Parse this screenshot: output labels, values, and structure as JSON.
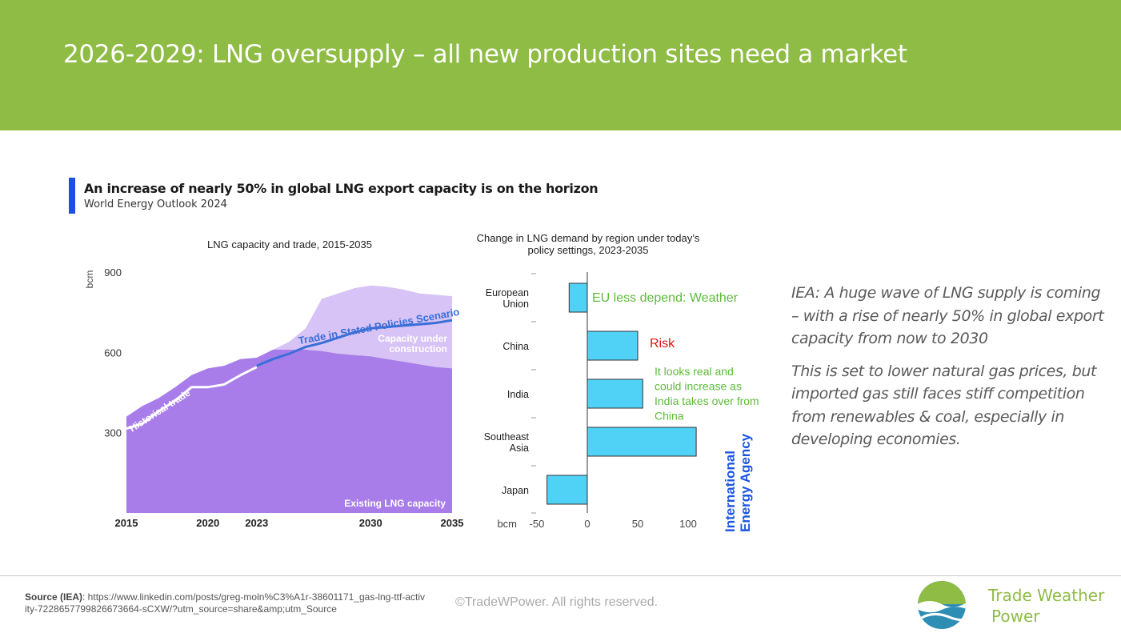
{
  "page": {
    "title": "2026-2029: LNG oversupply – all new production sites need a market"
  },
  "figure": {
    "title": "An increase of nearly 50% in global LNG export capacity is on the horizon",
    "subtitle": "World Energy Outlook 2024",
    "agency_label": [
      "International",
      "Energy Agency"
    ]
  },
  "chart_data": [
    {
      "type": "area",
      "title": "LNG capacity and trade, 2015-2035",
      "ylabel": "bcm",
      "ylim": [
        0,
        900
      ],
      "yticks": [
        300,
        600,
        900
      ],
      "xticks": [
        2015,
        2020,
        2023,
        2030,
        2035
      ],
      "xlim": [
        2015,
        2035
      ],
      "series": [
        {
          "name": "Existing LNG capacity",
          "color": "#a87de9",
          "x": [
            2015,
            2016,
            2017,
            2018,
            2019,
            2020,
            2021,
            2022,
            2023,
            2024,
            2025,
            2026,
            2027,
            2028,
            2029,
            2030,
            2031,
            2032,
            2033,
            2034,
            2035
          ],
          "values": [
            360,
            400,
            430,
            470,
            515,
            540,
            550,
            575,
            580,
            610,
            610,
            610,
            605,
            595,
            590,
            585,
            575,
            565,
            555,
            545,
            540
          ]
        },
        {
          "name": "Capacity under construction",
          "color": "#d7c3f6",
          "x": [
            2015,
            2016,
            2017,
            2018,
            2019,
            2020,
            2021,
            2022,
            2023,
            2024,
            2025,
            2026,
            2027,
            2028,
            2029,
            2030,
            2031,
            2032,
            2033,
            2034,
            2035
          ],
          "values": [
            360,
            400,
            430,
            470,
            515,
            540,
            550,
            575,
            580,
            610,
            640,
            690,
            800,
            820,
            840,
            850,
            845,
            835,
            820,
            815,
            810
          ]
        },
        {
          "name": "Historical trade",
          "color": "#ffffff",
          "x": [
            2015,
            2016,
            2017,
            2018,
            2019,
            2020,
            2021,
            2022,
            2023
          ],
          "values": [
            315,
            335,
            380,
            420,
            470,
            470,
            480,
            515,
            545
          ]
        },
        {
          "name": "Trade in Stated Policies Scenario",
          "color": "#3a6fd8",
          "x": [
            2023,
            2024,
            2025,
            2026,
            2027,
            2028,
            2029,
            2030,
            2031,
            2032,
            2033,
            2034,
            2035
          ],
          "values": [
            550,
            575,
            595,
            620,
            635,
            655,
            675,
            690,
            695,
            700,
            705,
            710,
            720
          ]
        }
      ]
    },
    {
      "type": "bar",
      "orientation": "horizontal",
      "title": "Change in LNG demand by region under today’s policy settings, 2023-2035",
      "xlabel": "bcm",
      "xlim": [
        -50,
        110
      ],
      "xticks": [
        -50,
        0,
        50,
        100
      ],
      "categories": [
        [
          "European",
          "Union"
        ],
        [
          "China"
        ],
        [
          "India"
        ],
        [
          "Southeast",
          "Asia"
        ],
        [
          "Japan"
        ]
      ],
      "values": [
        -18,
        50,
        55,
        108,
        -40
      ],
      "color": "#4fd2f6"
    }
  ],
  "annotations": {
    "eu": "EU less depend: Weather",
    "china": "Risk",
    "india": [
      "It looks real and",
      "could increase as",
      "India takes over from",
      "China"
    ]
  },
  "note": {
    "para1": "IEA: A huge wave of LNG supply is coming – with a rise of nearly 50% in global export capacity from now to 2030",
    "para2": "This is set to lower natural gas prices, but imported gas still faces stiff competition from renewables & coal, especially in developing economies."
  },
  "footer": {
    "source_label": "Source (IEA)",
    "source_text": ": https://www.linkedin.com/posts/greg-moln%C3%A1r-38601171_gas-lng-ttf-activity-7228657799826673664-sCXW/?utm_source=share&amp;utm_Source",
    "copyright": "©TradeWPower. All rights reserved.",
    "brand": [
      "Trade Weather",
      "Power"
    ]
  },
  "colors": {
    "header": "#8fbc45",
    "accent_blue": "#1d4ee6",
    "annotation_green": "#5dbb3a",
    "annotation_red": "#e01010"
  }
}
